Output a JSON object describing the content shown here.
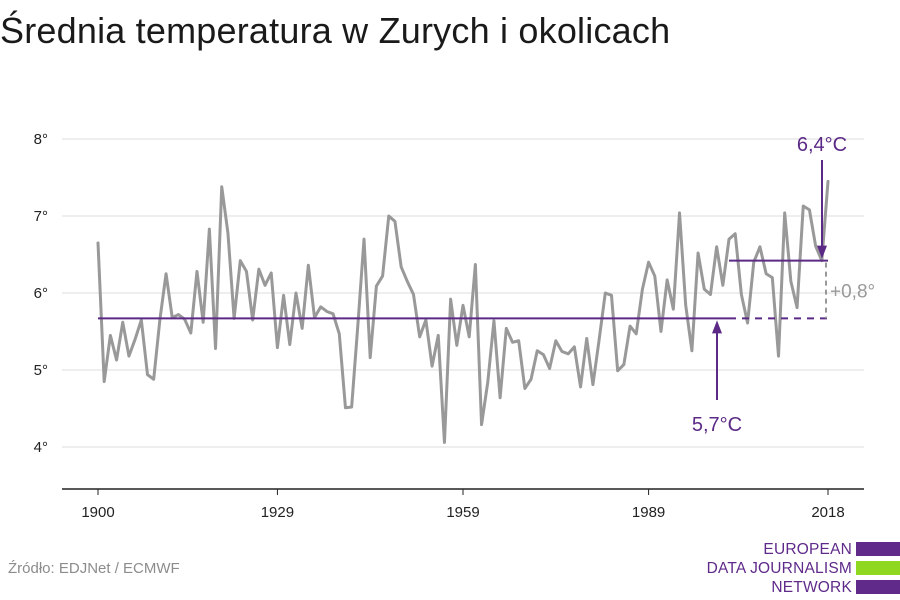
{
  "title": "Średnia temperatura w Zurych i okolicach",
  "source": "Źródło: EDJNet / ECMWF",
  "logo": {
    "lines": [
      "EUROPEAN",
      "DATA JOURNALISM",
      "NETWORK"
    ],
    "colors": {
      "purple": "#5f2a8a",
      "green": "#8fd81f"
    }
  },
  "colors": {
    "series": "#999999",
    "average": "#5b2a86",
    "diff": "#999999",
    "grid": "#dddddd",
    "axis": "#222222"
  },
  "chart_data": {
    "type": "line",
    "title": "Średnia temperatura w Zurych i okolicach",
    "xlabel": "",
    "ylabel": "",
    "xlim": [
      1900,
      2018
    ],
    "ylim": [
      3.5,
      8.4
    ],
    "x_ticks": [
      1900,
      1929,
      1959,
      1989,
      2018
    ],
    "y_ticks": [
      4,
      5,
      6,
      7,
      8
    ],
    "y_tick_labels": [
      "4°",
      "5°",
      "6°",
      "7°",
      "8°"
    ],
    "grid": true,
    "series": [
      {
        "x_start": 1900,
        "values": [
          6.65,
          4.85,
          5.45,
          5.13,
          5.62,
          5.18,
          5.4,
          5.65,
          4.94,
          4.88,
          5.65,
          6.25,
          5.68,
          5.72,
          5.66,
          5.48,
          6.28,
          5.62,
          6.83,
          5.28,
          7.38,
          6.78,
          5.67,
          6.42,
          6.28,
          5.65,
          6.31,
          6.1,
          6.26,
          5.29,
          5.97,
          5.33,
          6.0,
          5.54,
          6.36,
          5.68,
          5.82,
          5.76,
          5.73,
          5.47,
          4.51,
          4.52,
          5.58,
          6.7,
          5.16,
          6.09,
          6.22,
          7.0,
          6.93,
          6.34,
          6.15,
          5.98,
          5.43,
          5.65,
          5.05,
          5.45,
          4.06,
          5.92,
          5.32,
          5.84,
          5.43,
          6.37,
          4.29,
          4.84,
          5.64,
          4.64,
          5.54,
          5.36,
          5.38,
          4.76,
          4.88,
          5.25,
          5.2,
          5.02,
          5.38,
          5.24,
          5.21,
          5.3,
          4.78,
          5.41,
          4.81,
          5.39,
          6.0,
          5.97,
          4.99,
          5.07,
          5.57,
          5.47,
          6.05,
          6.4,
          6.22,
          5.5,
          6.17,
          5.79,
          7.04,
          5.84,
          5.25,
          6.52,
          6.05,
          5.98,
          6.6,
          6.1,
          6.7,
          6.77,
          5.98,
          5.61,
          6.4,
          6.6,
          6.25,
          6.2,
          5.18,
          7.04,
          6.15,
          5.81,
          7.13,
          7.08,
          6.61,
          6.42,
          7.45
        ]
      }
    ],
    "reference_lines": [
      {
        "label": "5,7°C",
        "value": 5.67,
        "x_start": 1900,
        "x_end": 2018,
        "dashed_from": 2002
      },
      {
        "label": "6,4°C",
        "value": 6.42,
        "x_start": 2002,
        "x_end": 2018
      }
    ],
    "annotations": {
      "low_label": "5,7°C",
      "high_label": "6,4°C",
      "difference_label": "+0,8°"
    }
  }
}
